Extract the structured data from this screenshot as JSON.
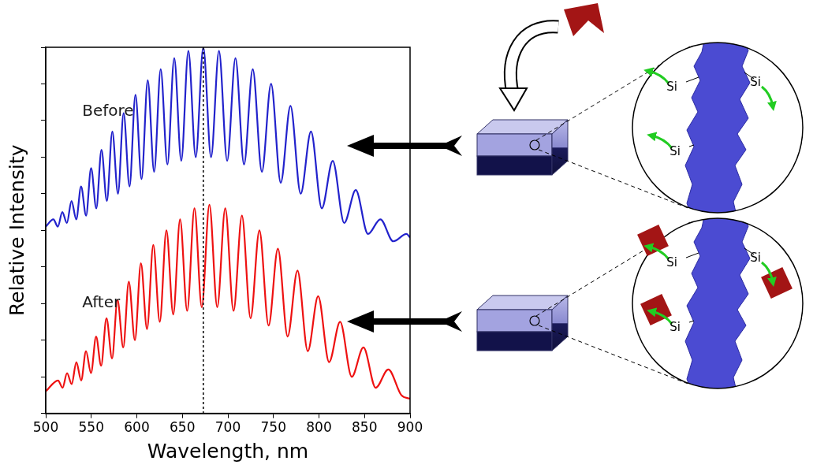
{
  "chart_data": {
    "type": "line",
    "x_label": "Wavelength, nm",
    "y_label": "Relative Intensity",
    "xlim": [
      500,
      900
    ],
    "xticks": [
      500,
      550,
      600,
      650,
      700,
      750,
      800,
      850,
      900
    ],
    "ylim": [
      0,
      10
    ],
    "yticks": [
      0,
      1,
      2,
      3,
      4,
      5,
      6,
      7,
      8,
      9,
      10
    ],
    "tick_labels": "x",
    "grid": false,
    "vline": 673,
    "series": [
      {
        "name": "Before",
        "color": "#2222cc",
        "x": [
          500,
          508.4,
          513.3,
          518.2,
          523.2,
          528.3,
          533.5,
          538.8,
          544.3,
          549.8,
          555.5,
          561.2,
          567.1,
          573.1,
          579.3,
          585.5,
          592.0,
          598.5,
          605.2,
          612.0,
          619.0,
          626.2,
          633.6,
          641.1,
          648.8,
          656.6,
          664.7,
          673.0,
          681.5,
          690.2,
          699.2,
          708.3,
          717.7,
          727.3,
          737.3,
          747.4,
          758.0,
          768.7,
          779.9,
          791.2,
          803.1,
          815.1,
          827.7,
          840.4,
          853.8,
          867.4,
          881.6,
          896.1,
          900
        ],
        "values": [
          5.1,
          5.3,
          5.1,
          5.5,
          5.2,
          5.8,
          5.3,
          6.2,
          5.4,
          6.7,
          5.6,
          7.2,
          5.8,
          7.7,
          6.0,
          8.2,
          6.2,
          8.7,
          6.4,
          9.1,
          6.6,
          9.4,
          6.8,
          9.7,
          6.9,
          9.9,
          7.0,
          10.0,
          7.0,
          9.9,
          6.9,
          9.7,
          6.8,
          9.4,
          6.6,
          9.0,
          6.3,
          8.4,
          6.0,
          7.7,
          5.6,
          6.9,
          5.2,
          6.1,
          4.9,
          5.3,
          4.7,
          4.9,
          4.8
        ]
      },
      {
        "name": "After",
        "color": "#ee1111",
        "x": [
          500,
          513.5,
          518.5,
          523.4,
          528.5,
          533.6,
          538.9,
          544.2,
          549.7,
          555.3,
          560.8,
          566.7,
          572.8,
          578.8,
          585.1,
          591.2,
          597.9,
          604.5,
          611.2,
          618.1,
          625.2,
          632.5,
          640.0,
          647.5,
          655.3,
          663.3,
          671.3,
          679.7,
          688.3,
          697.1,
          706.2,
          715.4,
          724.9,
          734.6,
          744.7,
          754.9,
          765.6,
          776.4,
          787.7,
          799.1,
          811.1,
          823.2,
          836.0,
          848.8,
          862.3,
          876.1,
          890.4,
          900
        ],
        "values": [
          0.6,
          0.9,
          0.7,
          1.1,
          0.8,
          1.4,
          0.9,
          1.7,
          1.1,
          2.1,
          1.3,
          2.6,
          1.5,
          3.1,
          1.8,
          3.6,
          2.0,
          4.1,
          2.3,
          4.6,
          2.5,
          5.0,
          2.7,
          5.3,
          2.8,
          5.6,
          2.9,
          5.7,
          2.9,
          5.6,
          2.8,
          5.4,
          2.6,
          5.0,
          2.4,
          4.5,
          2.1,
          3.9,
          1.7,
          3.2,
          1.4,
          2.5,
          1.0,
          1.8,
          0.7,
          1.2,
          0.5,
          0.4
        ]
      }
    ]
  },
  "diagram": {
    "before_sites": [
      "Si",
      "Si",
      "Si"
    ],
    "after_sites": [
      "Si",
      "Si",
      "Si"
    ]
  }
}
